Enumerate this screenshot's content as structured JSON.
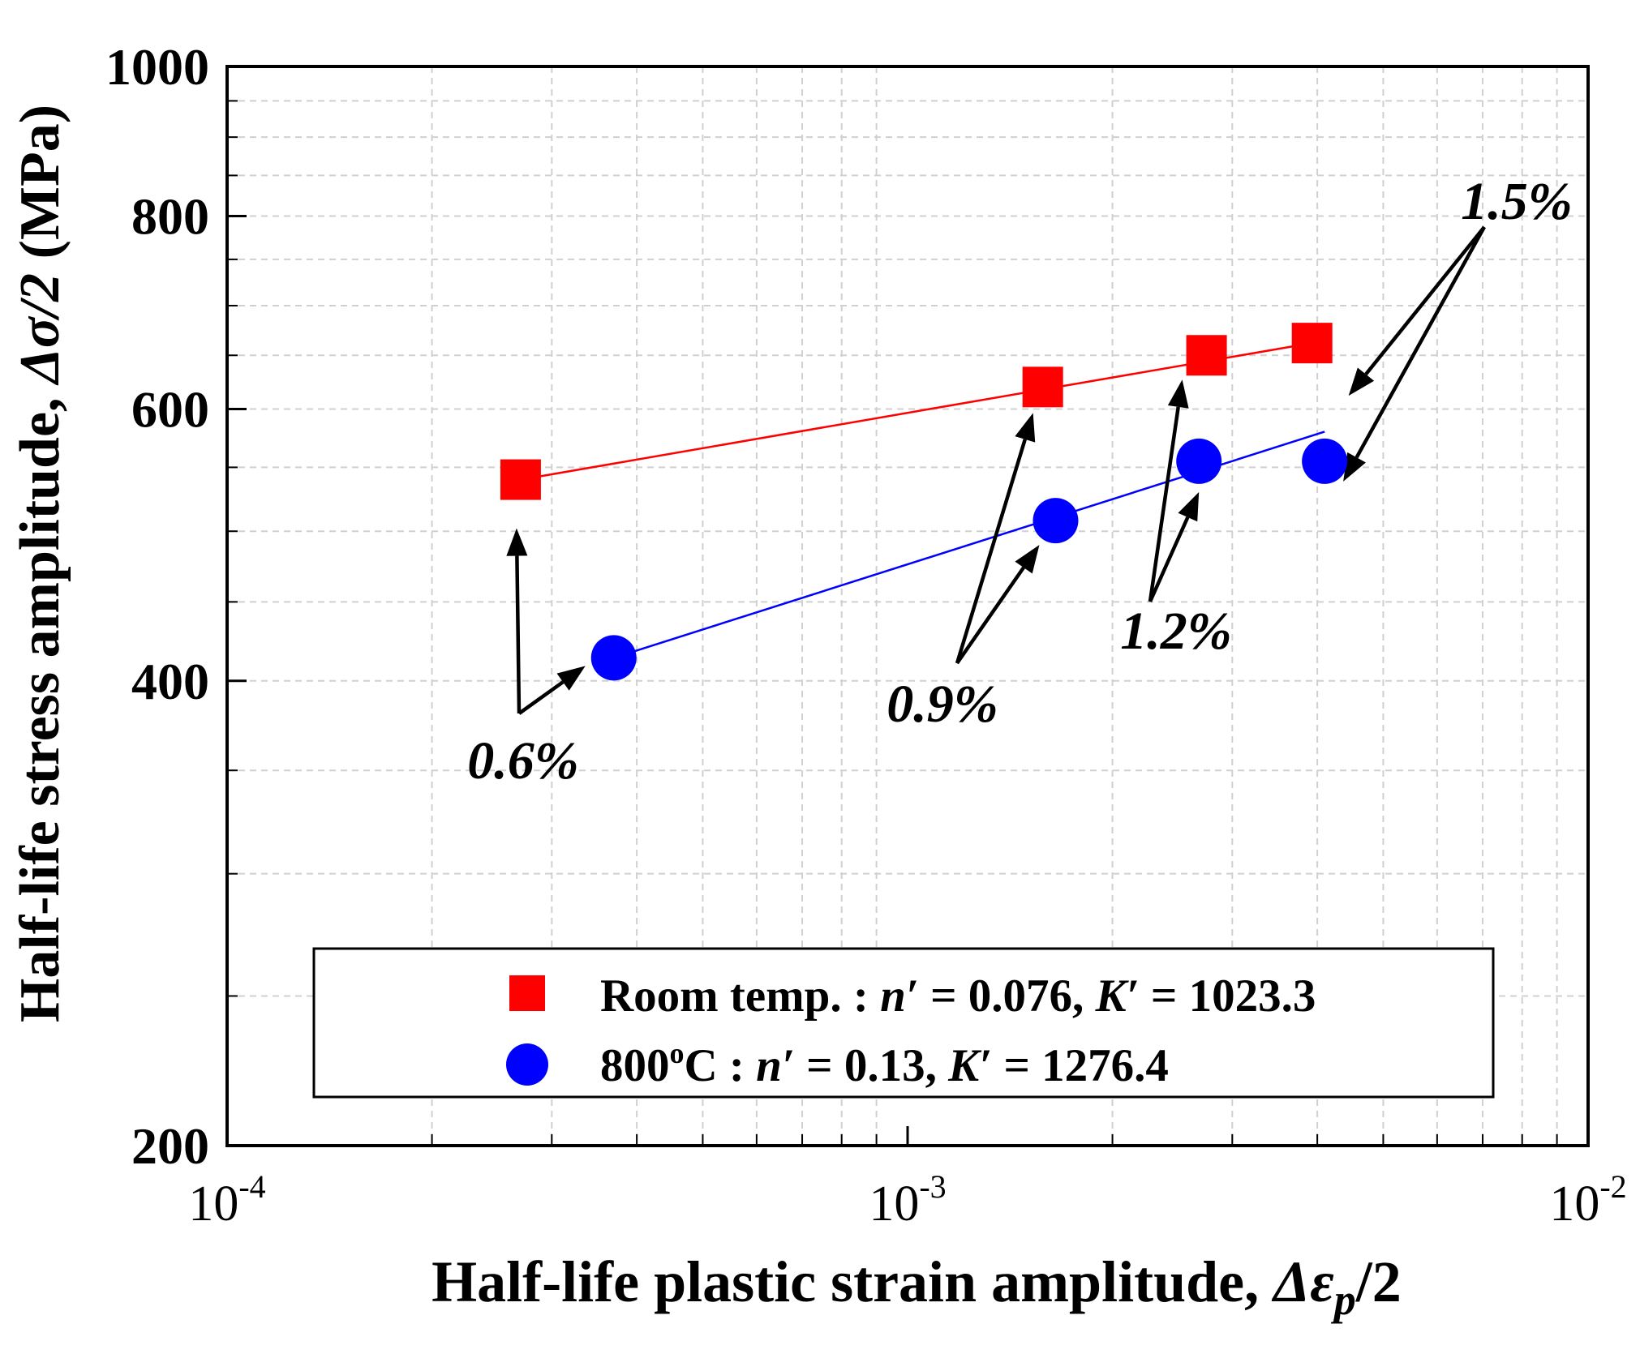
{
  "chart_data": {
    "type": "scatter",
    "xscale": "log",
    "yscale": "log",
    "xlim": [
      0.0001,
      0.01
    ],
    "ylim": [
      200,
      1000
    ],
    "xlabel": {
      "main": "Half-life plastic strain amplitude, ",
      "sym": "Δε",
      "sub": "p",
      "tail": "/2"
    },
    "ylabel": {
      "main": "Half-life stress amplitude, ",
      "sym": "Δσ/2",
      "unit": " (MPa)"
    },
    "x_ticks": [
      {
        "value": 0.0001,
        "base": "10",
        "exp": "-4"
      },
      {
        "value": 0.001,
        "base": "10",
        "exp": "-3"
      },
      {
        "value": 0.01,
        "base": "10",
        "exp": "-2"
      }
    ],
    "y_ticks": [
      {
        "value": 200,
        "label": "200"
      },
      {
        "value": 400,
        "label": "400"
      },
      {
        "value": 600,
        "label": "600"
      },
      {
        "value": 800,
        "label": "800"
      },
      {
        "value": 1000,
        "label": "1000"
      }
    ],
    "grid": true,
    "series": [
      {
        "name": "Room temp.",
        "marker": "square",
        "color": "#ff0000",
        "n_prime": "0.076",
        "K_prime": "1023.3",
        "points": [
          {
            "x": 0.00027,
            "y": 540
          },
          {
            "x": 0.00158,
            "y": 620
          },
          {
            "x": 0.00275,
            "y": 650
          },
          {
            "x": 0.00393,
            "y": 662
          }
        ],
        "fit": [
          [
            0.00027,
            540
          ],
          [
            0.00393,
            662
          ]
        ]
      },
      {
        "name": "800°C",
        "marker": "circle",
        "color": "#0000ff",
        "n_prime": "0.13",
        "K_prime": "1276.4",
        "points": [
          {
            "x": 0.00037,
            "y": 414
          },
          {
            "x": 0.00165,
            "y": 508
          },
          {
            "x": 0.00268,
            "y": 555
          },
          {
            "x": 0.0041,
            "y": 555
          }
        ],
        "fit": [
          [
            0.00037,
            414
          ],
          [
            0.0041,
            580
          ]
        ]
      }
    ],
    "annotations": [
      {
        "text": "0.6%",
        "targets": [
          "s0p0",
          "s1p0"
        ]
      },
      {
        "text": "0.9%",
        "targets": [
          "s0p1",
          "s1p1"
        ]
      },
      {
        "text": "1.2%",
        "targets": [
          "s0p2",
          "s1p2"
        ]
      },
      {
        "text": "1.5%",
        "targets": [
          "s0p3",
          "s1p3"
        ]
      }
    ],
    "legend": {
      "position": "bottom-right",
      "room": {
        "name": "Room temp.",
        "sep": " : ",
        "n_sym": "n′",
        "n_val": " = 0.076, ",
        "k_sym": "K′",
        "k_val": " = 1023.3"
      },
      "hot": {
        "base": "800",
        "sup": "o",
        "rest": "C",
        "sep": " : ",
        "n_sym": "n′",
        "n_val": " = 0.13, ",
        "k_sym": "K′",
        "k_val": " = 1276.4"
      }
    }
  }
}
